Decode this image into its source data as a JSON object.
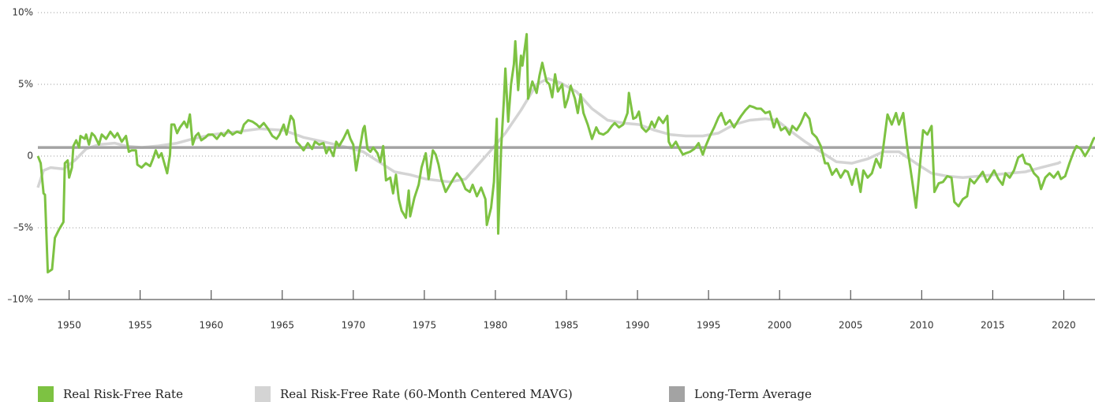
{
  "chart_data": {
    "type": "line",
    "xlim": [
      1947.8,
      2022.2
    ],
    "xticks": [
      1950,
      1955,
      1960,
      1965,
      1970,
      1975,
      1980,
      1985,
      1990,
      1995,
      2000,
      2005,
      2010,
      2015,
      2020
    ],
    "ylim": [
      -10,
      10
    ],
    "yticks": [
      {
        "value": -10,
        "label": "–10%"
      },
      {
        "value": -5,
        "label": "–5%"
      },
      0,
      {
        "value": 5,
        "label": "5%"
      },
      {
        "value": 10,
        "label": "10%"
      }
    ],
    "grid": true,
    "legend": "bottom",
    "series": [
      {
        "name": "Real Risk-Free Rate",
        "color": "#7dc242",
        "x": [
          1947.8,
          1948.0,
          1948.2,
          1948.3,
          1948.5,
          1948.8,
          1949.0,
          1949.3,
          1949.6,
          1949.7,
          1949.9,
          1950.0,
          1950.2,
          1950.3,
          1950.5,
          1950.7,
          1950.8,
          1951.1,
          1951.2,
          1951.4,
          1951.6,
          1951.8,
          1952.1,
          1952.3,
          1952.6,
          1952.9,
          1953.2,
          1953.4,
          1953.7,
          1954.0,
          1954.2,
          1954.4,
          1954.7,
          1954.8,
          1955.1,
          1955.4,
          1955.7,
          1955.9,
          1956.1,
          1956.3,
          1956.5,
          1956.7,
          1956.9,
          1957.1,
          1957.2,
          1957.4,
          1957.6,
          1957.8,
          1958.1,
          1958.3,
          1958.5,
          1958.7,
          1958.9,
          1959.1,
          1959.3,
          1959.6,
          1959.8,
          1960.1,
          1960.4,
          1960.7,
          1960.9,
          1961.2,
          1961.5,
          1961.8,
          1962.1,
          1962.3,
          1962.6,
          1962.9,
          1963.2,
          1963.4,
          1963.7,
          1964.0,
          1964.3,
          1964.6,
          1964.8,
          1965.1,
          1965.3,
          1965.6,
          1965.8,
          1966.0,
          1966.2,
          1966.5,
          1966.8,
          1967.1,
          1967.3,
          1967.6,
          1967.9,
          1968.1,
          1968.3,
          1968.6,
          1968.8,
          1969.0,
          1969.3,
          1969.6,
          1969.8,
          1970.0,
          1970.2,
          1970.4,
          1970.7,
          1970.8,
          1971.0,
          1971.2,
          1971.4,
          1971.7,
          1971.9,
          1972.1,
          1972.3,
          1972.6,
          1972.8,
          1973.0,
          1973.2,
          1973.4,
          1973.7,
          1973.9,
          1974.0,
          1974.3,
          1974.6,
          1974.8,
          1975.1,
          1975.3,
          1975.6,
          1975.8,
          1976.0,
          1976.2,
          1976.5,
          1976.8,
          1977.1,
          1977.3,
          1977.6,
          1977.9,
          1978.2,
          1978.4,
          1978.7,
          1979.0,
          1979.3,
          1979.4,
          1979.7,
          1979.9,
          1980.1,
          1980.2,
          1980.4,
          1980.6,
          1980.7,
          1980.9,
          1981.1,
          1981.3,
          1981.4,
          1981.6,
          1981.8,
          1981.9,
          1982.2,
          1982.3,
          1982.6,
          1982.9,
          1983.1,
          1983.3,
          1983.6,
          1983.8,
          1984.0,
          1984.2,
          1984.4,
          1984.7,
          1984.9,
          1985.1,
          1985.3,
          1985.6,
          1985.8,
          1986.0,
          1986.2,
          1986.5,
          1986.8,
          1987.1,
          1987.3,
          1987.6,
          1987.9,
          1988.2,
          1988.4,
          1988.7,
          1989.0,
          1989.3,
          1989.4,
          1989.7,
          1989.9,
          1990.1,
          1990.3,
          1990.6,
          1990.8,
          1991.0,
          1991.2,
          1991.5,
          1991.8,
          1992.1,
          1992.2,
          1992.4,
          1992.7,
          1992.9,
          1993.2,
          1993.4,
          1993.7,
          1994.0,
          1994.3,
          1994.6,
          1994.8,
          1995.1,
          1995.4,
          1995.7,
          1995.9,
          1996.2,
          1996.5,
          1996.8,
          1997.1,
          1997.3,
          1997.6,
          1997.9,
          1998.2,
          1998.4,
          1998.7,
          1999.0,
          1999.3,
          1999.6,
          1999.8,
          2000.1,
          2000.4,
          2000.7,
          2000.9,
          2001.2,
          2001.5,
          2001.8,
          2002.1,
          2002.3,
          2002.6,
          2002.9,
          2003.2,
          2003.4,
          2003.7,
          2004.0,
          2004.3,
          2004.6,
          2004.8,
          2005.1,
          2005.4,
          2005.7,
          2005.9,
          2006.2,
          2006.5,
          2006.8,
          2007.1,
          2007.3,
          2007.6,
          2007.9,
          2008.2,
          2008.4,
          2008.7,
          2009.0,
          2009.3,
          2009.6,
          2009.8,
          2010.1,
          2010.4,
          2010.7,
          2010.9,
          2011.2,
          2011.5,
          2011.8,
          2012.1,
          2012.3,
          2012.6,
          2012.9,
          2013.2,
          2013.4,
          2013.7,
          2014.0,
          2014.3,
          2014.6,
          2014.8,
          2015.1,
          2015.4,
          2015.7,
          2015.9,
          2016.2,
          2016.5,
          2016.8,
          2017.1,
          2017.3,
          2017.6,
          2017.9,
          2018.2,
          2018.4,
          2018.7,
          2019.0,
          2019.3,
          2019.6,
          2019.8,
          2020.1,
          2020.4,
          2020.7,
          2020.9,
          2021.2,
          2021.5,
          2021.8,
          2022.1,
          2022.2
        ],
        "values": [
          0,
          -0.5,
          -2.6,
          -2.7,
          -8.1,
          -7.9,
          -5.7,
          -5.1,
          -4.6,
          -0.5,
          -0.3,
          -1.5,
          -0.8,
          0.7,
          1.1,
          0.6,
          1.4,
          1.2,
          1.5,
          0.8,
          1.6,
          1.4,
          0.8,
          1.5,
          1.2,
          1.7,
          1.3,
          1.6,
          1.0,
          1.4,
          0.3,
          0.4,
          0.4,
          -0.6,
          -0.8,
          -0.5,
          -0.7,
          -0.2,
          0.4,
          -0.1,
          0.2,
          -0.5,
          -1.2,
          0.1,
          2.2,
          2.2,
          1.6,
          2.0,
          2.4,
          2.0,
          2.9,
          0.8,
          1.4,
          1.6,
          1.1,
          1.3,
          1.5,
          1.5,
          1.2,
          1.6,
          1.4,
          1.8,
          1.5,
          1.7,
          1.6,
          2.2,
          2.5,
          2.4,
          2.2,
          2.0,
          2.3,
          1.9,
          1.4,
          1.2,
          1.5,
          2.2,
          1.5,
          2.8,
          2.5,
          1.0,
          0.8,
          0.4,
          0.9,
          0.5,
          1.0,
          0.8,
          0.9,
          0.2,
          0.6,
          0.0,
          1.0,
          0.7,
          1.2,
          1.8,
          1.2,
          0.8,
          -1.0,
          0.2,
          1.9,
          2.1,
          0.5,
          0.3,
          0.6,
          0.2,
          -0.4,
          0.7,
          -1.7,
          -1.5,
          -2.6,
          -1.3,
          -3.0,
          -3.8,
          -4.3,
          -2.4,
          -4.2,
          -2.9,
          -2.0,
          -0.8,
          0.2,
          -1.6,
          0.4,
          0.1,
          -0.6,
          -1.6,
          -2.5,
          -2.0,
          -1.5,
          -1.2,
          -1.6,
          -2.3,
          -2.5,
          -2.0,
          -2.8,
          -2.2,
          -3.0,
          -4.8,
          -3.6,
          -1.8,
          2.6,
          -5.4,
          0.5,
          4.0,
          6.1,
          2.4,
          5.0,
          6.4,
          8.0,
          4.6,
          7.0,
          6.3,
          8.5,
          4.0,
          5.2,
          4.4,
          5.6,
          6.5,
          5.2,
          5.0,
          4.1,
          5.7,
          4.5,
          5.0,
          3.4,
          4.0,
          4.9,
          4.0,
          3.0,
          4.3,
          3.0,
          2.2,
          1.2,
          2.0,
          1.6,
          1.5,
          1.7,
          2.1,
          2.3,
          2.0,
          2.2,
          3.0,
          4.4,
          2.6,
          2.7,
          3.1,
          2.0,
          1.7,
          1.9,
          2.4,
          2.0,
          2.7,
          2.3,
          2.8,
          1.0,
          0.6,
          1.0,
          0.6,
          0.1,
          0.2,
          0.3,
          0.5,
          0.9,
          0.1,
          0.7,
          1.4,
          2.0,
          2.7,
          3.0,
          2.2,
          2.5,
          2.0,
          2.5,
          2.8,
          3.2,
          3.5,
          3.4,
          3.3,
          3.3,
          3.0,
          3.1,
          2.0,
          2.6,
          1.8,
          2.0,
          1.5,
          2.1,
          1.8,
          2.3,
          3.0,
          2.6,
          1.6,
          1.3,
          0.7,
          -0.5,
          -0.5,
          -1.3,
          -0.9,
          -1.5,
          -1.0,
          -1.1,
          -2.0,
          -0.9,
          -2.5,
          -1.0,
          -1.5,
          -1.2,
          -0.2,
          -0.8,
          0.6,
          2.9,
          2.2,
          3.0,
          2.2,
          3.0,
          0.5,
          -1.5,
          -3.6,
          -1.5,
          1.8,
          1.5,
          2.1,
          -2.5,
          -1.9,
          -1.8,
          -1.4,
          -1.5,
          -3.2,
          -3.5,
          -3.0,
          -2.8,
          -1.6,
          -1.9,
          -1.5,
          -1.1,
          -1.8,
          -1.5,
          -1.0,
          -1.6,
          -2.0,
          -1.2,
          -1.5,
          -1.0,
          -0.1,
          0.1,
          -0.5,
          -0.6,
          -1.2,
          -1.5,
          -2.3,
          -1.5,
          -1.2,
          -1.5,
          -1.1,
          -1.6,
          -1.4,
          -0.5,
          0.3,
          0.7,
          0.5,
          0.0,
          0.5,
          1.2,
          1.3
        ]
      },
      {
        "name": "Real Risk-Free Rate (60-Month Centered MAVG)",
        "color": "#d4d4d4",
        "x": [
          1947.8,
          1948.2,
          1948.7,
          1949.6,
          1950.4,
          1951.2,
          1952.1,
          1953.2,
          1954.0,
          1955.1,
          1956.2,
          1957.6,
          1958.7,
          1960.1,
          1961.8,
          1963.4,
          1965.1,
          1966.5,
          1967.9,
          1969.6,
          1970.7,
          1971.8,
          1972.9,
          1974.0,
          1975.1,
          1976.8,
          1977.9,
          1978.7,
          1979.6,
          1980.7,
          1981.8,
          1982.9,
          1983.7,
          1984.6,
          1985.7,
          1986.8,
          1987.9,
          1989.0,
          1990.1,
          1991.2,
          1992.3,
          1993.4,
          1994.6,
          1995.7,
          1996.8,
          1997.9,
          1999.0,
          1999.8,
          2000.7,
          2001.8,
          2002.9,
          2004.0,
          2005.1,
          2006.2,
          2007.3,
          2008.4,
          2009.6,
          2010.7,
          2011.8,
          2012.9,
          2014.0,
          2015.1,
          2016.2,
          2017.3,
          2018.4,
          2019.6,
          2019.8
        ],
        "values": [
          -2.2,
          -1.0,
          -0.8,
          -0.9,
          -0.3,
          0.5,
          0.8,
          0.9,
          0.7,
          0.6,
          0.7,
          0.9,
          1.2,
          1.5,
          1.7,
          1.9,
          1.8,
          1.3,
          1.0,
          0.6,
          0.3,
          -0.4,
          -1.1,
          -1.3,
          -1.6,
          -1.8,
          -1.6,
          -0.7,
          0.3,
          1.6,
          3.2,
          5.0,
          5.4,
          5.1,
          4.5,
          3.3,
          2.5,
          2.3,
          2.2,
          1.8,
          1.5,
          1.4,
          1.4,
          1.6,
          2.2,
          2.5,
          2.6,
          2.5,
          1.8,
          1.0,
          0.3,
          -0.4,
          -0.5,
          -0.2,
          0.3,
          0.3,
          -0.5,
          -1.2,
          -1.4,
          -1.5,
          -1.4,
          -1.3,
          -1.2,
          -1.1,
          -0.8,
          -0.5,
          -0.4
        ]
      },
      {
        "name": "Long-Term Average",
        "color": "#a3a3a3",
        "x": [
          1947.8,
          2022.2
        ],
        "values": [
          0.6,
          0.6
        ]
      }
    ]
  }
}
